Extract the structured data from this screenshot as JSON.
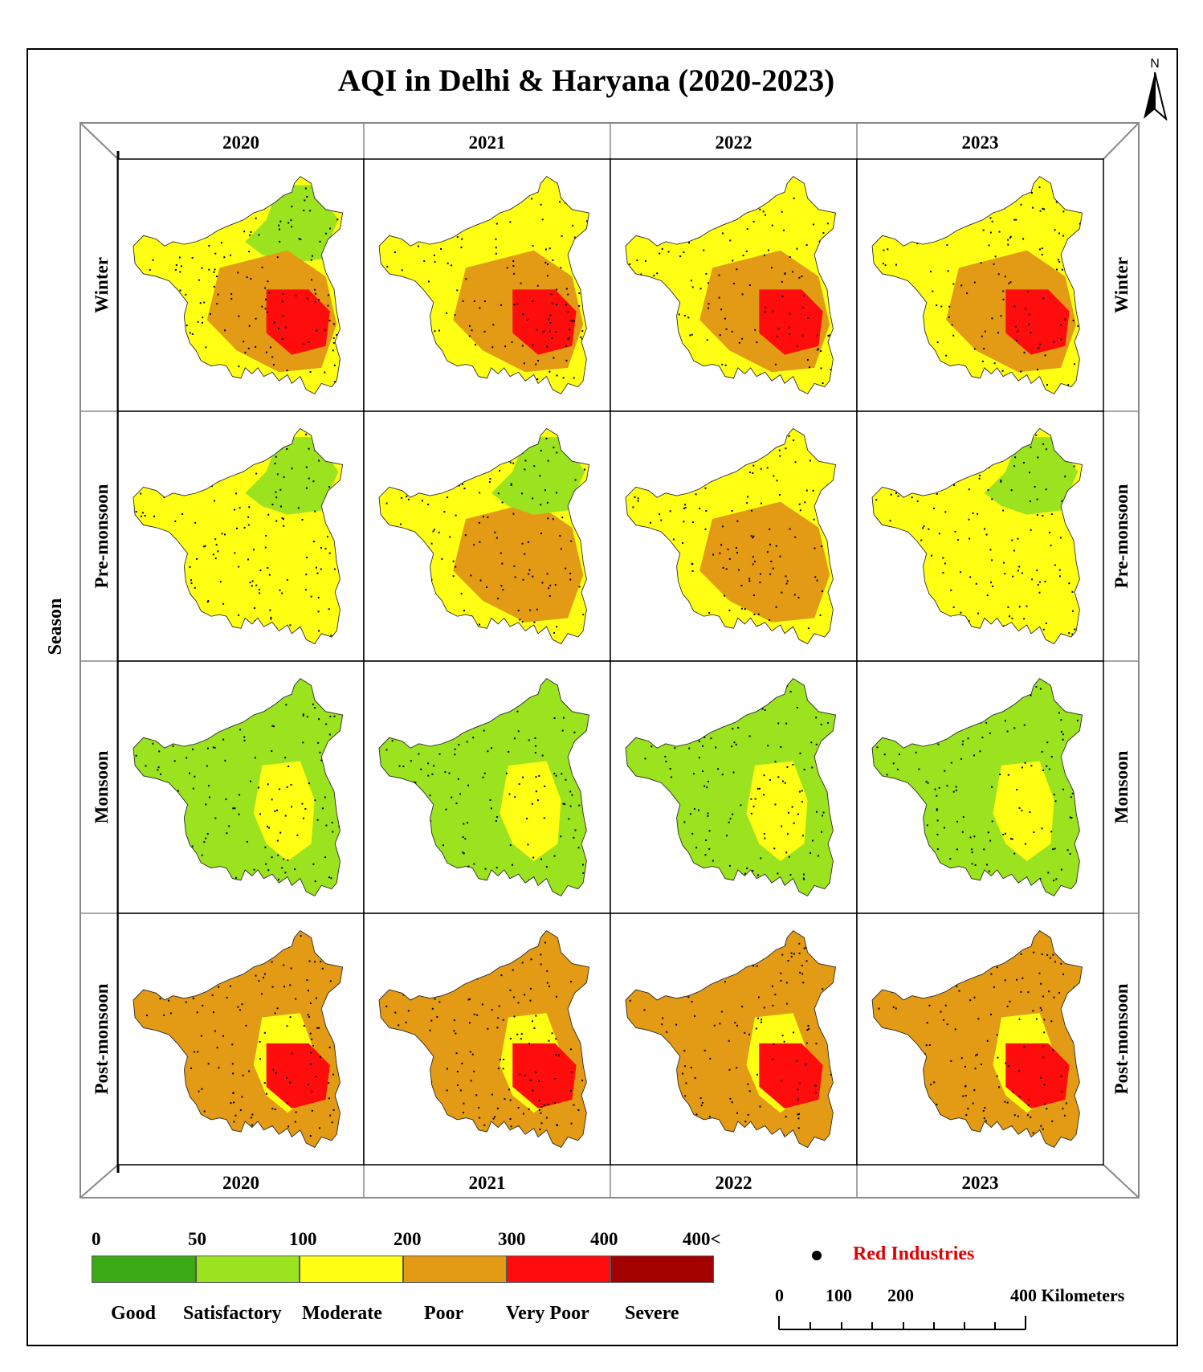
{
  "title": "AQI in Delhi & Haryana (2020-2023)",
  "north_label": "N",
  "years": [
    "2020",
    "2021",
    "2022",
    "2023"
  ],
  "seasons": [
    "Winter",
    "Pre-monsoon",
    "Monsoon",
    "Post-monsoon"
  ],
  "axis_label": "Season",
  "legend": {
    "breaks": [
      "0",
      "50",
      "100",
      "200",
      "300",
      "400",
      "400<"
    ],
    "categories": [
      {
        "label": "Good",
        "color": "#3caa14"
      },
      {
        "label": "Satisfactory",
        "color": "#9be31f"
      },
      {
        "label": "Moderate",
        "color": "#ffff14"
      },
      {
        "label": "Poor",
        "color": "#e39a14"
      },
      {
        "label": "Very Poor",
        "color": "#ff0c0c"
      },
      {
        "label": "Severe",
        "color": "#a30000"
      }
    ]
  },
  "point_legend": {
    "label": "Red Industries",
    "color": "#e30000"
  },
  "scale_bar": {
    "ticks": [
      "0",
      "100",
      "200"
    ],
    "end_label": "400 Kilometers"
  },
  "maps": {
    "2020": {
      "Winter": {
        "base": "Moderate",
        "zones": [
          "Satisfactory",
          "Poor",
          "Very Poor"
        ]
      },
      "Pre-monsoon": {
        "base": "Moderate",
        "zones": [
          "Satisfactory"
        ]
      },
      "Monsoon": {
        "base": "Satisfactory",
        "zones": [
          "Moderate"
        ]
      },
      "Post-monsoon": {
        "base": "Poor",
        "zones": [
          "Moderate",
          "Very Poor"
        ]
      }
    },
    "2021": {
      "Winter": {
        "base": "Moderate",
        "zones": [
          "Poor",
          "Very Poor"
        ]
      },
      "Pre-monsoon": {
        "base": "Moderate",
        "zones": [
          "Poor",
          "Satisfactory"
        ]
      },
      "Monsoon": {
        "base": "Satisfactory",
        "zones": [
          "Moderate"
        ]
      },
      "Post-monsoon": {
        "base": "Poor",
        "zones": [
          "Moderate",
          "Very Poor"
        ]
      }
    },
    "2022": {
      "Winter": {
        "base": "Moderate",
        "zones": [
          "Poor",
          "Very Poor"
        ]
      },
      "Pre-monsoon": {
        "base": "Moderate",
        "zones": [
          "Poor"
        ]
      },
      "Monsoon": {
        "base": "Satisfactory",
        "zones": [
          "Moderate"
        ]
      },
      "Post-monsoon": {
        "base": "Poor",
        "zones": [
          "Moderate",
          "Very Poor"
        ]
      }
    },
    "2023": {
      "Winter": {
        "base": "Moderate",
        "zones": [
          "Poor",
          "Very Poor"
        ]
      },
      "Pre-monsoon": {
        "base": "Moderate",
        "zones": [
          "Satisfactory"
        ]
      },
      "Monsoon": {
        "base": "Satisfactory",
        "zones": [
          "Moderate"
        ]
      },
      "Post-monsoon": {
        "base": "Poor",
        "zones": [
          "Moderate",
          "Very Poor"
        ]
      }
    }
  }
}
